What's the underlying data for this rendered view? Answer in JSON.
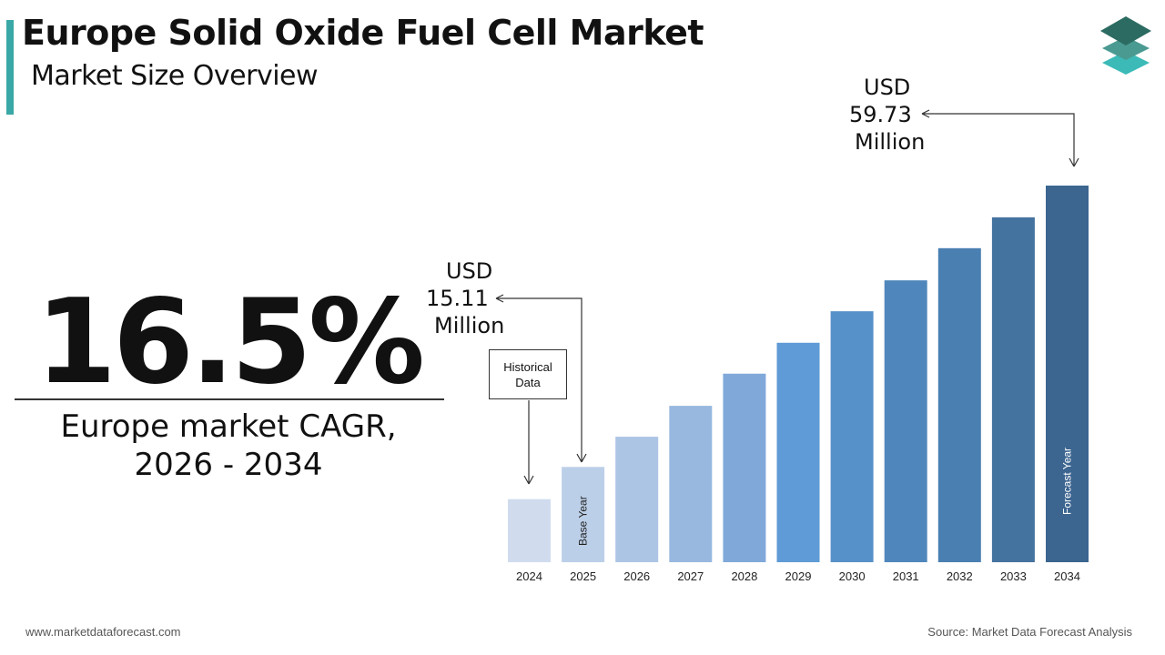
{
  "header": {
    "title": "Europe Solid Oxide Fuel Cell Market",
    "subtitle": "Market Size Overview"
  },
  "logo": {
    "icon": "stacked-layers-logo",
    "colors": [
      "#2c6b62",
      "#4a9a92",
      "#3bbab8"
    ]
  },
  "kpi": {
    "value": "16.5%",
    "label_line1": "Europe market CAGR,",
    "label_line2": "2026 - 2034"
  },
  "callouts": {
    "start": {
      "line1": "USD",
      "line2": "15.11",
      "line3": "Million"
    },
    "end": {
      "line1": "USD",
      "line2": "59.73",
      "line3": "Million"
    },
    "historical": {
      "line1": "Historical",
      "line2": "Data"
    }
  },
  "chart_data": {
    "type": "bar",
    "categories": [
      "2024",
      "2025",
      "2026",
      "2027",
      "2028",
      "2029",
      "2030",
      "2031",
      "2032",
      "2033",
      "2034"
    ],
    "values": [
      10.0,
      15.11,
      19.9,
      24.8,
      29.9,
      34.8,
      39.8,
      44.7,
      49.8,
      54.7,
      59.73
    ],
    "colors": [
      "#d0dcee",
      "#bccfe8",
      "#adc5e5",
      "#98b8df",
      "#80a9da",
      "#5f9bd6",
      "#5791c9",
      "#4f87bc",
      "#4a7fb2",
      "#4573a0",
      "#3c6590"
    ],
    "bar_labels": {
      "2025": "Base Year",
      "2034": "Forecast Year"
    },
    "unit": "USD Million",
    "title": "",
    "xlabel": "",
    "ylabel": "",
    "grid": false
  },
  "footer": {
    "website": "www.marketdataforecast.com",
    "source": "Source: Market Data Forecast Analysis"
  }
}
